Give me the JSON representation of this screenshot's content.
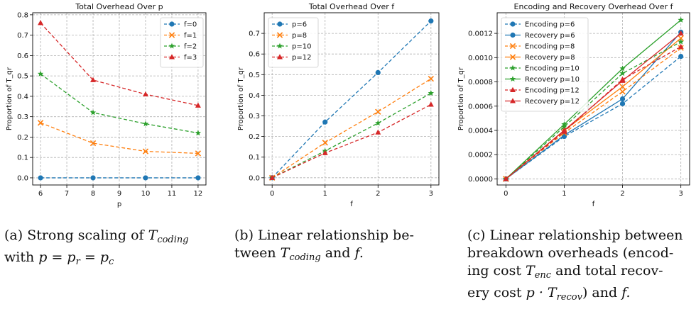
{
  "chart_data": [
    {
      "type": "line",
      "title": "Total Overhead Over p",
      "xlabel": "p",
      "ylabel": "Proportion of T_qr",
      "x": [
        6,
        8,
        10,
        12
      ],
      "xticks": [
        "6",
        "7",
        "8",
        "9",
        "10",
        "11",
        "12"
      ],
      "xlim": [
        5.7,
        12.3
      ],
      "ylim": [
        -0.035,
        0.81
      ],
      "yticks": [
        "0.0",
        "0.1",
        "0.2",
        "0.3",
        "0.4",
        "0.5",
        "0.6",
        "0.7",
        "0.8"
      ],
      "legend": "top-right",
      "grid": true,
      "series": [
        {
          "name": "f=0",
          "color": "#1f77b4",
          "marker": "circle",
          "values": [
            0.0,
            0.0,
            0.0,
            0.0
          ]
        },
        {
          "name": "f=1",
          "color": "#ff7f0e",
          "marker": "x",
          "values": [
            0.27,
            0.17,
            0.13,
            0.12
          ]
        },
        {
          "name": "f=2",
          "color": "#2ca02c",
          "marker": "star",
          "values": [
            0.51,
            0.32,
            0.265,
            0.22
          ]
        },
        {
          "name": "f=3",
          "color": "#d62728",
          "marker": "triangle",
          "values": [
            0.76,
            0.48,
            0.41,
            0.355
          ]
        }
      ]
    },
    {
      "type": "line",
      "title": "Total Overhead Over f",
      "xlabel": "f",
      "ylabel": "Proportion of T_qr",
      "x": [
        0,
        1,
        2,
        3
      ],
      "xticks": [
        "0",
        "1",
        "2",
        "3"
      ],
      "xlim": [
        -0.15,
        3.15
      ],
      "ylim": [
        -0.035,
        0.8
      ],
      "yticks": [
        "0.0",
        "0.1",
        "0.2",
        "0.3",
        "0.4",
        "0.5",
        "0.6",
        "0.7"
      ],
      "legend": "top-left",
      "grid": true,
      "series": [
        {
          "name": "p=6",
          "color": "#1f77b4",
          "marker": "circle",
          "values": [
            0.0,
            0.27,
            0.51,
            0.76
          ]
        },
        {
          "name": "p=8",
          "color": "#ff7f0e",
          "marker": "x",
          "values": [
            0.0,
            0.17,
            0.32,
            0.48
          ]
        },
        {
          "name": "p=10",
          "color": "#2ca02c",
          "marker": "star",
          "values": [
            0.0,
            0.13,
            0.265,
            0.41
          ]
        },
        {
          "name": "p=12",
          "color": "#d62728",
          "marker": "triangle",
          "values": [
            0.0,
            0.12,
            0.22,
            0.355
          ]
        }
      ]
    },
    {
      "type": "line",
      "title": "Encoding and Recovery Overhead Over f",
      "xlabel": "f",
      "ylabel": "Proportion of T_qr",
      "x": [
        0,
        1,
        2,
        3
      ],
      "xticks": [
        "0",
        "1",
        "2",
        "3"
      ],
      "xlim": [
        -0.15,
        3.15
      ],
      "ylim": [
        -5e-05,
        0.00137
      ],
      "yticks": [
        "0.0000",
        "0.0002",
        "0.0004",
        "0.0006",
        "0.0008",
        "0.0010",
        "0.0012"
      ],
      "legend": "top-left",
      "grid": true,
      "series": [
        {
          "name": "Encoding p=6",
          "color": "#1f77b4",
          "marker": "circle",
          "dashed": true,
          "values": [
            0.0,
            0.00035,
            0.00062,
            0.00101
          ]
        },
        {
          "name": "Recovery p=6",
          "color": "#1f77b4",
          "marker": "circle",
          "dashed": false,
          "values": [
            0.0,
            0.00036,
            0.00066,
            0.00121
          ]
        },
        {
          "name": "Encoding p=8",
          "color": "#ff7f0e",
          "marker": "x",
          "dashed": true,
          "values": [
            0.0,
            0.00038,
            0.00072,
            0.00108
          ]
        },
        {
          "name": "Recovery p=8",
          "color": "#ff7f0e",
          "marker": "x",
          "dashed": false,
          "values": [
            0.0,
            0.0004,
            0.00076,
            0.00116
          ]
        },
        {
          "name": "Encoding p=10",
          "color": "#2ca02c",
          "marker": "star",
          "dashed": true,
          "values": [
            0.0,
            0.00043,
            0.00087,
            0.00113
          ]
        },
        {
          "name": "Recovery p=10",
          "color": "#2ca02c",
          "marker": "star",
          "dashed": false,
          "values": [
            0.0,
            0.00045,
            0.00091,
            0.00131
          ]
        },
        {
          "name": "Encoding p=12",
          "color": "#d62728",
          "marker": "triangle",
          "dashed": true,
          "values": [
            0.0,
            0.00039,
            0.00082,
            0.00109
          ]
        },
        {
          "name": "Recovery p=12",
          "color": "#d62728",
          "marker": "triangle",
          "dashed": false,
          "values": [
            0.0,
            0.0004,
            0.00081,
            0.0012
          ]
        }
      ]
    }
  ],
  "captions": {
    "a": {
      "label": "(a) Strong scaling of",
      "var": "T",
      "sub": "coding",
      "with": "with",
      "eq": "p = p",
      "r": "r",
      "eq2": "= p",
      "c": "c"
    },
    "b": {
      "line1": "(b) Linear relationship be-",
      "line2a": "tween",
      "var": "T",
      "sub": "coding",
      "line2b": "and",
      "f": "f."
    },
    "c": {
      "line1": "(c) Linear relationship between",
      "line2": "breakdown overheads (encod-",
      "line3a": "ing cost",
      "var1": "T",
      "sub1": "enc",
      "line3b": "and total recov-",
      "line4a": "ery cost",
      "var2": "p · T",
      "sub2": "recov",
      "line4b": ") and",
      "f": "f."
    }
  }
}
